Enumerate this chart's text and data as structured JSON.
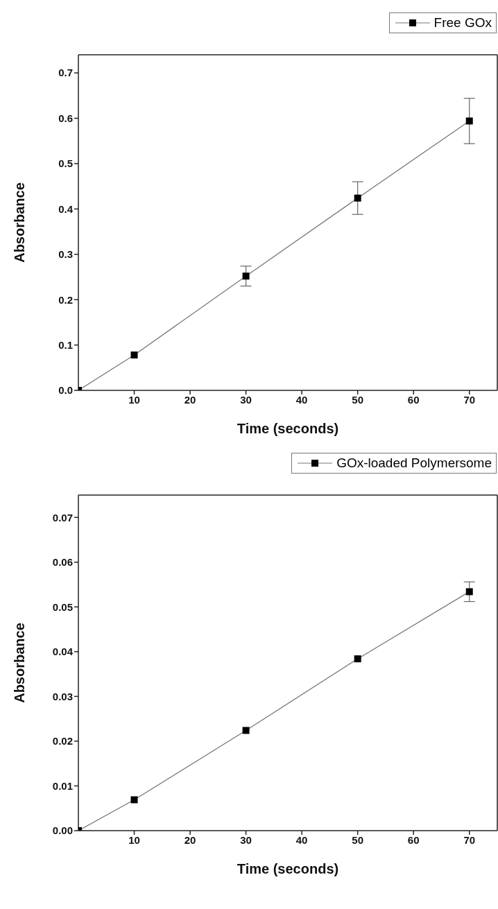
{
  "chart_data": [
    {
      "type": "line",
      "xlabel": "Time (seconds)",
      "ylabel": "Absorbance",
      "x": [
        0,
        10,
        30,
        50,
        70
      ],
      "xlim": [
        0,
        75
      ],
      "xticks": [
        10,
        20,
        30,
        40,
        50,
        60,
        70
      ],
      "ylim": [
        0,
        0.74
      ],
      "yticks": [
        {
          "value": 0,
          "label": "0.0"
        },
        0.1,
        0.2,
        0.3,
        0.4,
        0.5,
        0.6,
        0.7
      ],
      "series": [
        {
          "name": "Free GOx",
          "color": "#000000",
          "values": [
            0,
            0.078,
            0.252,
            0.424,
            0.594
          ],
          "errors": [
            null,
            null,
            0.022,
            0.036,
            0.05
          ]
        }
      ],
      "marker": "square",
      "line_style": "solid",
      "legend": "top right",
      "grid": false
    },
    {
      "type": "line",
      "xlabel": "Time (seconds)",
      "ylabel": "Absorbance",
      "x": [
        0,
        10,
        30,
        50,
        70
      ],
      "xlim": [
        0,
        75
      ],
      "xticks": [
        10,
        20,
        30,
        40,
        50,
        60,
        70
      ],
      "ylim": [
        0,
        0.075
      ],
      "yticks": [
        {
          "value": 0,
          "label": "0.00"
        },
        0.01,
        0.02,
        0.03,
        0.04,
        0.05,
        0.06,
        0.07
      ],
      "series": [
        {
          "name": "GOx-loaded Polymersome",
          "color": "#000000",
          "values": [
            0,
            0.0069,
            0.0224,
            0.0384,
            0.0534
          ],
          "errors": [
            null,
            null,
            null,
            null,
            0.0022
          ]
        }
      ],
      "marker": "square",
      "line_style": "solid",
      "legend": "top right",
      "grid": false
    }
  ]
}
